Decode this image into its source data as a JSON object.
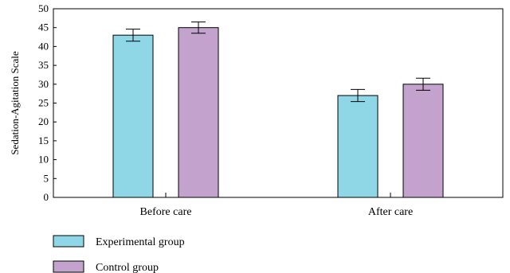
{
  "chart_data": {
    "type": "bar",
    "title": "",
    "xlabel": "",
    "ylabel": "Sedation-Agitation Scale",
    "ylim": [
      0,
      50
    ],
    "yticks": [
      0,
      5,
      10,
      15,
      20,
      25,
      30,
      35,
      40,
      45,
      50
    ],
    "categories": [
      "Before care",
      "After care"
    ],
    "series": [
      {
        "name": "Experimental group",
        "values": [
          43,
          27
        ],
        "errors": [
          1.6,
          1.6
        ],
        "color": "#8fd7e6"
      },
      {
        "name": "Control group",
        "values": [
          45,
          30
        ],
        "errors": [
          1.5,
          1.6
        ],
        "color": "#c3a3cd"
      }
    ],
    "grid": false,
    "legend_position": "bottom-left"
  }
}
